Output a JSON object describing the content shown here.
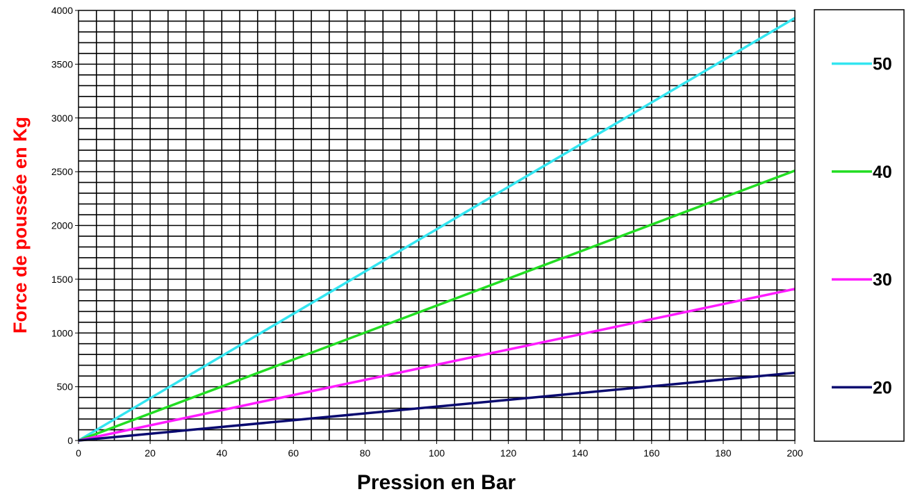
{
  "chart_data": {
    "type": "line",
    "title": "",
    "xlabel": "Pression en Bar",
    "ylabel": "Force de poussée en Kg",
    "xlim": [
      0,
      200
    ],
    "ylim": [
      0,
      4000
    ],
    "x_ticks": [
      "0",
      "20",
      "40",
      "60",
      "80",
      "100",
      "120",
      "140",
      "160",
      "180",
      "200"
    ],
    "y_ticks": [
      "0",
      "500",
      "1000",
      "1500",
      "2000",
      "2500",
      "3000",
      "3500",
      "4000"
    ],
    "grid": true,
    "legend_position": "right",
    "series": [
      {
        "name": "50",
        "color": "#33e5f0",
        "x": [
          0,
          200
        ],
        "y": [
          0,
          3930
        ]
      },
      {
        "name": "40",
        "color": "#22dd22",
        "x": [
          0,
          200
        ],
        "y": [
          0,
          2510
        ]
      },
      {
        "name": "30",
        "color": "#ff1aff",
        "x": [
          0,
          200
        ],
        "y": [
          0,
          1410
        ]
      },
      {
        "name": "20",
        "color": "#0a0a70",
        "x": [
          0,
          200
        ],
        "y": [
          0,
          630
        ]
      }
    ]
  }
}
